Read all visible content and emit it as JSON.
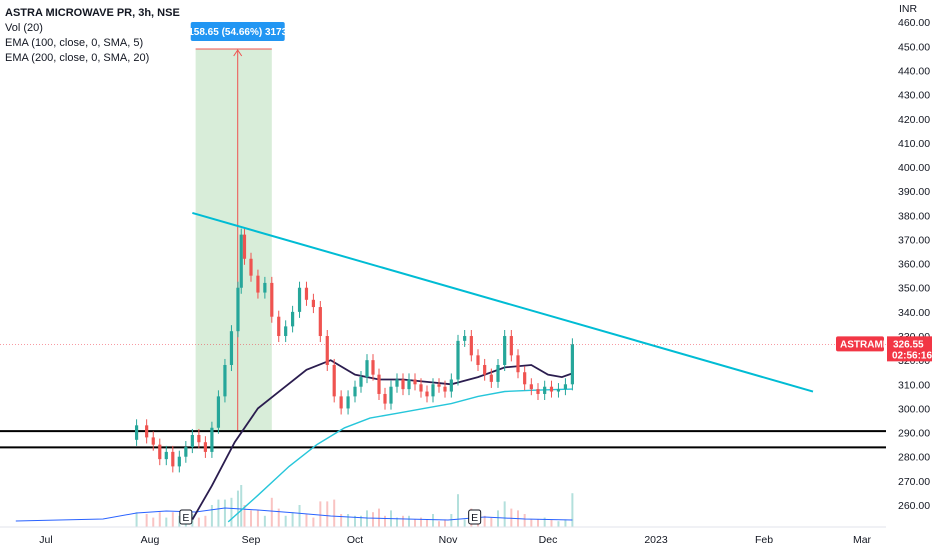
{
  "legend": {
    "title": "ASTRA MICROWAVE PR, 3h, NSE",
    "vol": "Vol (20)",
    "ema1": "EMA (100, close, 0, SMA, 5)",
    "ema2": "EMA (200, close, 0, SMA, 20)"
  },
  "colors": {
    "up": "#26a69a",
    "down": "#ef5350",
    "trendline": "#00bcd4",
    "ema100": "#2b1d4f",
    "ema200": "#26c6da",
    "range_fill": "#c8e6c9",
    "range_label_bg": "#2196f3",
    "symbol_tag": "#f23645",
    "level_line": "#000000",
    "volume_ma": "#2962ff"
  },
  "chart_data": {
    "type": "candlestick",
    "currency": "INR",
    "symbol_tag": "ASTRAMICRO",
    "last_price": "326.55",
    "countdown": "02:56:16",
    "x_ticks": [
      "Jul",
      "Aug",
      "Sep",
      "Oct",
      "Nov",
      "Dec",
      "2023",
      "Feb",
      "Mar"
    ],
    "y_ticks": [
      260,
      270,
      280,
      290,
      300,
      310,
      320,
      330,
      340,
      350,
      360,
      370,
      380,
      390,
      400,
      410,
      420,
      430,
      440,
      450,
      460
    ],
    "ylim": [
      253,
      463
    ],
    "horizontal_levels": [
      {
        "price": 290.6,
        "label": "290.60"
      },
      {
        "price": 283.85,
        "label": "283.85"
      }
    ],
    "measure_box": {
      "label": "158.65 (54.66%) 3173",
      "from_price": 290.3,
      "to_price": 448.9,
      "x_start": "2022-08-15",
      "x_end": "2022-09-07"
    },
    "trendline": {
      "start": {
        "date": "2022-08-14",
        "price": 381
      },
      "end": {
        "date": "2023-02-15",
        "price": 307
      }
    },
    "event_markers": [
      {
        "label": "E",
        "date": "2022-08-12"
      },
      {
        "label": "E",
        "date": "2022-11-09"
      }
    ],
    "ema100_points": [
      [
        "2022-08-14",
        254
      ],
      [
        "2022-08-20",
        268
      ],
      [
        "2022-08-27",
        286
      ],
      [
        "2022-09-03",
        300
      ],
      [
        "2022-09-10",
        308
      ],
      [
        "2022-09-17",
        316
      ],
      [
        "2022-09-24",
        320
      ],
      [
        "2022-10-01",
        314
      ],
      [
        "2022-10-09",
        312
      ],
      [
        "2022-10-17",
        312
      ],
      [
        "2022-10-25",
        311
      ],
      [
        "2022-11-02",
        310
      ],
      [
        "2022-11-10",
        313
      ],
      [
        "2022-11-18",
        317
      ],
      [
        "2022-11-26",
        318
      ],
      [
        "2022-12-01",
        314
      ],
      [
        "2022-12-05",
        313
      ],
      [
        "2022-12-08",
        314.5
      ]
    ],
    "ema200_points": [
      [
        "2022-08-25",
        253
      ],
      [
        "2022-09-03",
        264
      ],
      [
        "2022-09-12",
        276
      ],
      [
        "2022-09-20",
        285
      ],
      [
        "2022-09-28",
        292
      ],
      [
        "2022-10-06",
        296
      ],
      [
        "2022-10-15",
        298
      ],
      [
        "2022-10-24",
        300
      ],
      [
        "2022-11-02",
        302
      ],
      [
        "2022-11-10",
        305
      ],
      [
        "2022-11-18",
        307
      ],
      [
        "2022-11-26",
        307.5
      ],
      [
        "2022-12-03",
        307.8
      ],
      [
        "2022-12-08",
        308
      ]
    ],
    "candles": [
      [
        "2022-07-28",
        287,
        293
      ],
      [
        "2022-07-31",
        293,
        288
      ],
      [
        "2022-08-02",
        288,
        285
      ],
      [
        "2022-08-04",
        285,
        279
      ],
      [
        "2022-08-06",
        279,
        282
      ],
      [
        "2022-08-08",
        282,
        276
      ],
      [
        "2022-08-10",
        276,
        280
      ],
      [
        "2022-08-12",
        280,
        284
      ],
      [
        "2022-08-14",
        284,
        289
      ],
      [
        "2022-08-16",
        289,
        286
      ],
      [
        "2022-08-18",
        286,
        282
      ],
      [
        "2022-08-20",
        282,
        292
      ],
      [
        "2022-08-22",
        292,
        305
      ],
      [
        "2022-08-24",
        305,
        318
      ],
      [
        "2022-08-26",
        318,
        332
      ],
      [
        "2022-08-28",
        332,
        350
      ],
      [
        "2022-08-29",
        350,
        372
      ],
      [
        "2022-08-30",
        372,
        362
      ],
      [
        "2022-09-01",
        362,
        355
      ],
      [
        "2022-09-03",
        355,
        348
      ],
      [
        "2022-09-05",
        348,
        352
      ],
      [
        "2022-09-07",
        352,
        338
      ],
      [
        "2022-09-09",
        338,
        330
      ],
      [
        "2022-09-11",
        330,
        334
      ],
      [
        "2022-09-13",
        334,
        340
      ],
      [
        "2022-09-15",
        340,
        350
      ],
      [
        "2022-09-17",
        350,
        345
      ],
      [
        "2022-09-19",
        345,
        342
      ],
      [
        "2022-09-21",
        342,
        330
      ],
      [
        "2022-09-23",
        330,
        318
      ],
      [
        "2022-09-25",
        318,
        305
      ],
      [
        "2022-09-27",
        305,
        300
      ],
      [
        "2022-09-29",
        300,
        305
      ],
      [
        "2022-10-01",
        305,
        309
      ],
      [
        "2022-10-03",
        309,
        313
      ],
      [
        "2022-10-05",
        313,
        320
      ],
      [
        "2022-10-07",
        320,
        314
      ],
      [
        "2022-10-09",
        314,
        306
      ],
      [
        "2022-10-11",
        306,
        302
      ],
      [
        "2022-10-13",
        302,
        309
      ],
      [
        "2022-10-15",
        309,
        312
      ],
      [
        "2022-10-17",
        312,
        308
      ],
      [
        "2022-10-19",
        308,
        312
      ],
      [
        "2022-10-21",
        312,
        310
      ],
      [
        "2022-10-23",
        310,
        307
      ],
      [
        "2022-10-25",
        307,
        305
      ],
      [
        "2022-10-27",
        305,
        310
      ],
      [
        "2022-10-29",
        310,
        309
      ],
      [
        "2022-10-31",
        309,
        307
      ],
      [
        "2022-11-02",
        307,
        312
      ],
      [
        "2022-11-04",
        312,
        328
      ],
      [
        "2022-11-06",
        328,
        330
      ],
      [
        "2022-11-08",
        330,
        322
      ],
      [
        "2022-11-10",
        322,
        318
      ],
      [
        "2022-11-12",
        318,
        314
      ],
      [
        "2022-11-14",
        314,
        311
      ],
      [
        "2022-11-16",
        311,
        318
      ],
      [
        "2022-11-18",
        318,
        330
      ],
      [
        "2022-11-20",
        330,
        322
      ],
      [
        "2022-11-22",
        322,
        315
      ],
      [
        "2022-11-24",
        315,
        310
      ],
      [
        "2022-11-26",
        310,
        308
      ],
      [
        "2022-11-28",
        308,
        306
      ],
      [
        "2022-11-30",
        306,
        309
      ],
      [
        "2022-12-02",
        309,
        307
      ],
      [
        "2022-12-04",
        307,
        308
      ],
      [
        "2022-12-06",
        308,
        310
      ],
      [
        "2022-12-08",
        310,
        326.55
      ]
    ],
    "volume_ma_points": [
      [
        "2022-06-22",
        6
      ],
      [
        "2022-07-05",
        7
      ],
      [
        "2022-07-18",
        8
      ],
      [
        "2022-07-28",
        14
      ],
      [
        "2022-08-06",
        16
      ],
      [
        "2022-08-15",
        15
      ],
      [
        "2022-08-24",
        19
      ],
      [
        "2022-09-03",
        17
      ],
      [
        "2022-09-14",
        14
      ],
      [
        "2022-09-24",
        11
      ],
      [
        "2022-10-05",
        9
      ],
      [
        "2022-10-18",
        8
      ],
      [
        "2022-11-01",
        7
      ],
      [
        "2022-11-12",
        10
      ],
      [
        "2022-11-24",
        8
      ],
      [
        "2022-12-08",
        7
      ]
    ]
  }
}
